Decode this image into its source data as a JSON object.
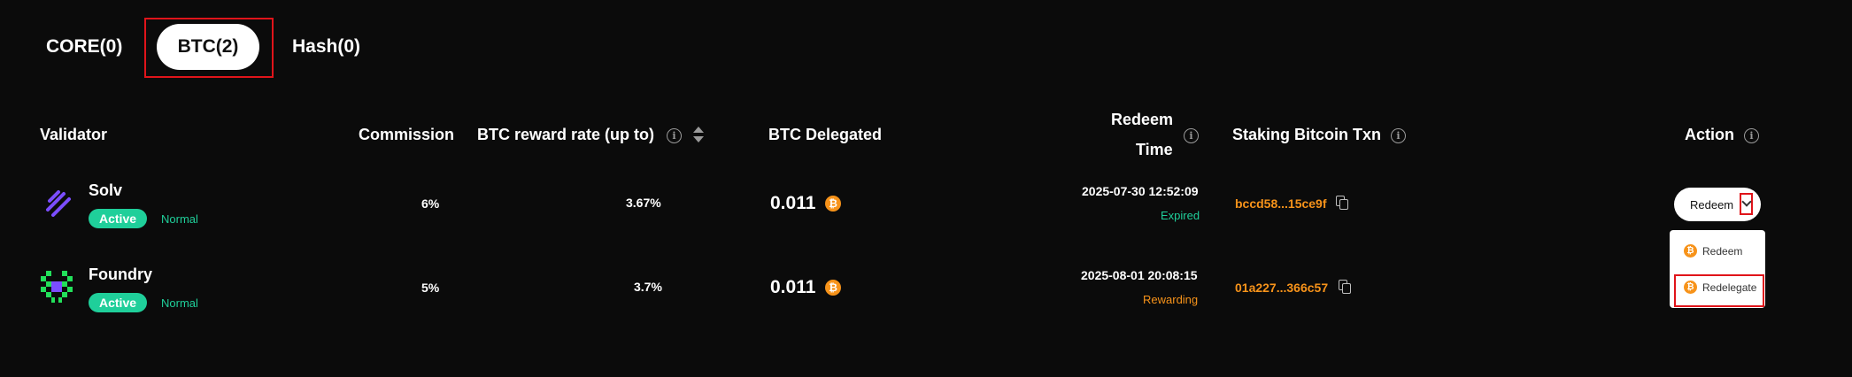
{
  "tabs": {
    "core": "CORE(0)",
    "btc": "BTC(2)",
    "hash": "Hash(0)"
  },
  "headers": {
    "validator": "Validator",
    "commission": "Commission",
    "reward_rate": "BTC reward rate (up to)",
    "delegated": "BTC Delegated",
    "redeem_line1": "Redeem",
    "redeem_line2": "Time",
    "txn": "Staking Bitcoin Txn",
    "action": "Action"
  },
  "icons": {
    "info": "info-icon",
    "sort": "sort-icon",
    "bitcoin": "bitcoin-icon",
    "copy": "copy-icon",
    "chevron": "chevron-down-icon"
  },
  "colors": {
    "background": "#0b0b0b",
    "active_green": "#1fcf9a",
    "bitcoin_orange": "#f7931a",
    "highlight_red": "#e0141a"
  },
  "rows": [
    {
      "validator": "Solv",
      "badge": "Active",
      "tag": "Normal",
      "commission": "6%",
      "reward_rate": "3.67%",
      "delegated": "0.011",
      "redeem_time": "2025-07-30 12:52:09",
      "status": "Expired",
      "txn": "bccd58...15ce9f"
    },
    {
      "validator": "Foundry",
      "badge": "Active",
      "tag": "Normal",
      "commission": "5%",
      "reward_rate": "3.7%",
      "delegated": "0.011",
      "redeem_time": "2025-08-01 20:08:15",
      "status": "Rewarding",
      "txn": "01a227...366c57"
    }
  ],
  "action": {
    "button_label": "Redeem",
    "menu": [
      "Redeem",
      "Redelegate"
    ]
  }
}
